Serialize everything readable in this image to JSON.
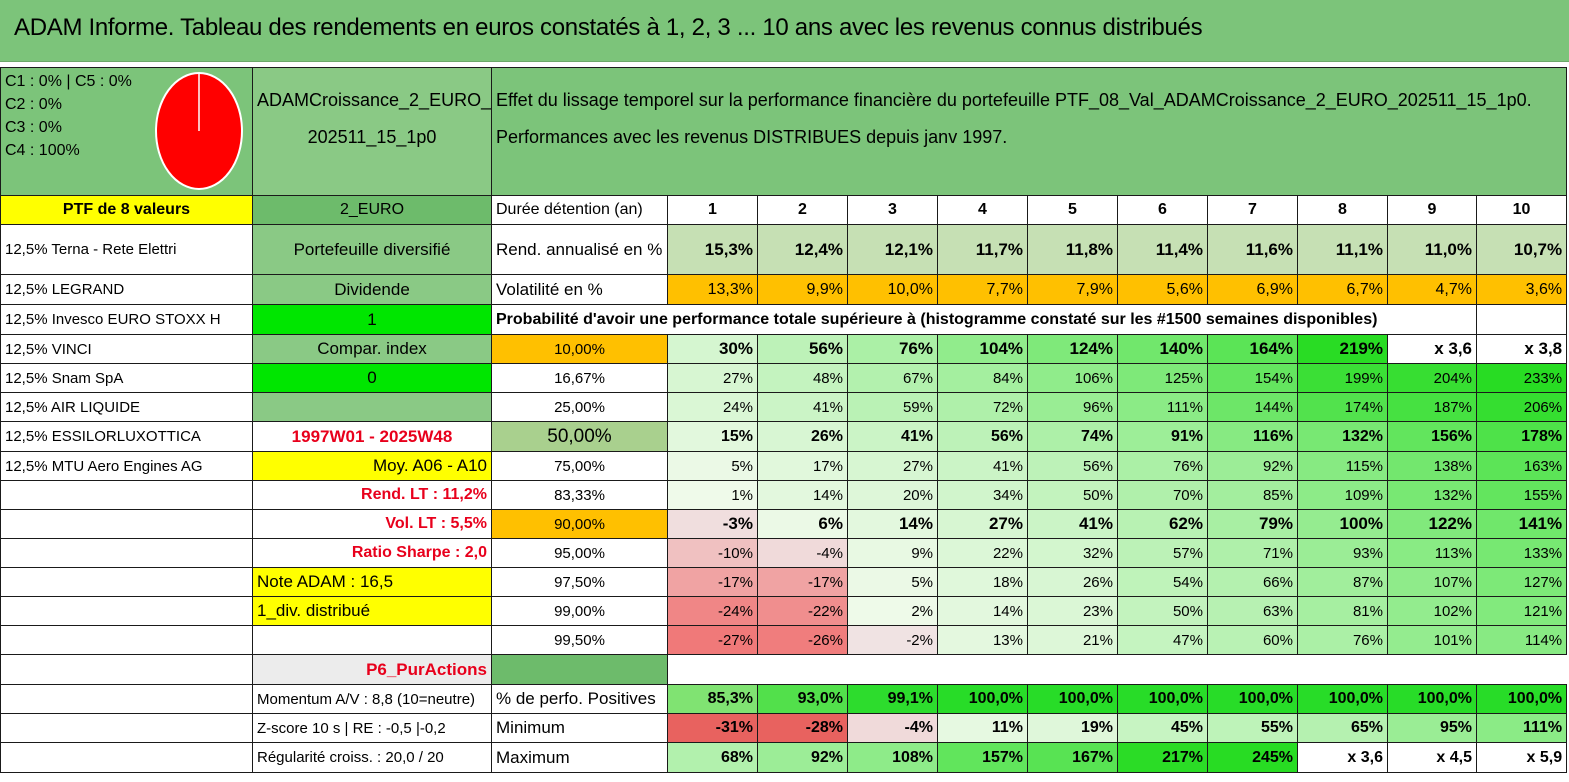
{
  "title": "ADAM Informe. Tableau des rendements en euros constatés à 1, 2, 3 ... 10 ans avec les revenus connus distribués",
  "legend": [
    "C1 : 0% | C5 : 0%",
    "C2 : 0%",
    "C3 : 0%",
    "C4 : 100%"
  ],
  "pie": {
    "c4_percent": 100,
    "color": "#ff0000"
  },
  "portfolio_name_1": "ADAMCroissance_2_EURO_",
  "portfolio_name_2": "202511_15_1p0",
  "description_1": "Effet du lissage temporel sur la performance financière du portefeuille PTF_08_Val_ADAMCroissance_2_EURO_202511_15_1p0.",
  "description_2": "Performances avec les revenus DISTRIBUES depuis janv 1997.",
  "ptf_label": "PTF de 8 valeurs",
  "currency": "2_EURO",
  "duration_label": "Durée détention (an)",
  "years": [
    "1",
    "2",
    "3",
    "4",
    "5",
    "6",
    "7",
    "8",
    "9",
    "10"
  ],
  "holdings": [
    "12,5% Terna - Rete Elettri",
    "12,5% LEGRAND",
    "12,5% Invesco EURO STOXX H",
    "12,5% VINCI",
    "12,5% Snam SpA",
    "12,5% AIR LIQUIDE",
    "12,5% ESSILORLUXOTTICA",
    "12,5% MTU Aero Engines AG"
  ],
  "side_info": {
    "portefeuille": "Portefeuille diversifié",
    "dividende": "Dividende",
    "dividende_val": "1",
    "compar_index": "Compar. index",
    "compar_val": "0",
    "period": "1997W01 - 2025W48",
    "moy": "Moy. A06 - A10",
    "rend_lt": "Rend. LT : 11,2%",
    "vol_lt": "Vol. LT : 5,5%",
    "sharpe": "Ratio Sharpe : 2,0",
    "note": "Note ADAM : 16,5",
    "div_distrib": "1_div. distribué",
    "p6": "P6_PurActions",
    "momentum": "Momentum A/V : 8,8 (10=neutre)",
    "zscore": "Z-score 10 s | RE : -0,5 |-0,2",
    "regularite": "Régularité croiss. : 20,0 / 20"
  },
  "rend_label": "Rend. annualisé en %",
  "rend_values": [
    "15,3%",
    "12,4%",
    "12,1%",
    "11,7%",
    "11,8%",
    "11,4%",
    "11,6%",
    "11,1%",
    "11,0%",
    "10,7%"
  ],
  "vol_label": "Volatilité en %",
  "vol_values": [
    "13,3%",
    "9,9%",
    "10,0%",
    "7,7%",
    "7,9%",
    "5,6%",
    "6,9%",
    "6,7%",
    "4,7%",
    "3,6%"
  ],
  "proba_title": "Probabilité d'avoir une performance totale supérieure à (histogramme constaté sur les #1500 semaines disponibles)",
  "proba_rows": [
    {
      "q": "10,00%",
      "v": [
        "30%",
        "56%",
        "76%",
        "104%",
        "124%",
        "140%",
        "164%",
        "219%",
        "x 3,6",
        "x 3,8"
      ]
    },
    {
      "q": "16,67%",
      "v": [
        "27%",
        "48%",
        "67%",
        "84%",
        "106%",
        "125%",
        "154%",
        "199%",
        "204%",
        "233%"
      ]
    },
    {
      "q": "25,00%",
      "v": [
        "24%",
        "41%",
        "59%",
        "72%",
        "96%",
        "111%",
        "144%",
        "174%",
        "187%",
        "206%"
      ]
    },
    {
      "q": "50,00%",
      "v": [
        "15%",
        "26%",
        "41%",
        "56%",
        "74%",
        "91%",
        "116%",
        "132%",
        "156%",
        "178%"
      ]
    },
    {
      "q": "75,00%",
      "v": [
        "5%",
        "17%",
        "27%",
        "41%",
        "56%",
        "76%",
        "92%",
        "115%",
        "138%",
        "163%"
      ]
    },
    {
      "q": "83,33%",
      "v": [
        "1%",
        "14%",
        "20%",
        "34%",
        "50%",
        "70%",
        "85%",
        "109%",
        "132%",
        "155%"
      ]
    },
    {
      "q": "90,00%",
      "v": [
        "-3%",
        "6%",
        "14%",
        "27%",
        "41%",
        "62%",
        "79%",
        "100%",
        "122%",
        "141%"
      ]
    },
    {
      "q": "95,00%",
      "v": [
        "-10%",
        "-4%",
        "9%",
        "22%",
        "32%",
        "57%",
        "71%",
        "93%",
        "113%",
        "133%"
      ]
    },
    {
      "q": "97,50%",
      "v": [
        "-17%",
        "-17%",
        "5%",
        "18%",
        "26%",
        "54%",
        "66%",
        "87%",
        "107%",
        "127%"
      ]
    },
    {
      "q": "99,00%",
      "v": [
        "-24%",
        "-22%",
        "2%",
        "14%",
        "23%",
        "50%",
        "63%",
        "81%",
        "102%",
        "121%"
      ]
    },
    {
      "q": "99,50%",
      "v": [
        "-27%",
        "-26%",
        "-2%",
        "13%",
        "21%",
        "47%",
        "60%",
        "76%",
        "101%",
        "114%"
      ]
    }
  ],
  "pos_label": "% de perfo. Positives",
  "pos_values": [
    "85,3%",
    "93,0%",
    "99,1%",
    "100,0%",
    "100,0%",
    "100,0%",
    "100,0%",
    "100,0%",
    "100,0%",
    "100,0%"
  ],
  "min_label": "Minimum",
  "min_values": [
    "-31%",
    "-28%",
    "-4%",
    "11%",
    "19%",
    "45%",
    "55%",
    "65%",
    "95%",
    "111%"
  ],
  "max_label": "Maximum",
  "max_values": [
    "68%",
    "92%",
    "108%",
    "157%",
    "167%",
    "217%",
    "245%",
    "x 3,6",
    "x 4,5",
    "x 5,9"
  ]
}
